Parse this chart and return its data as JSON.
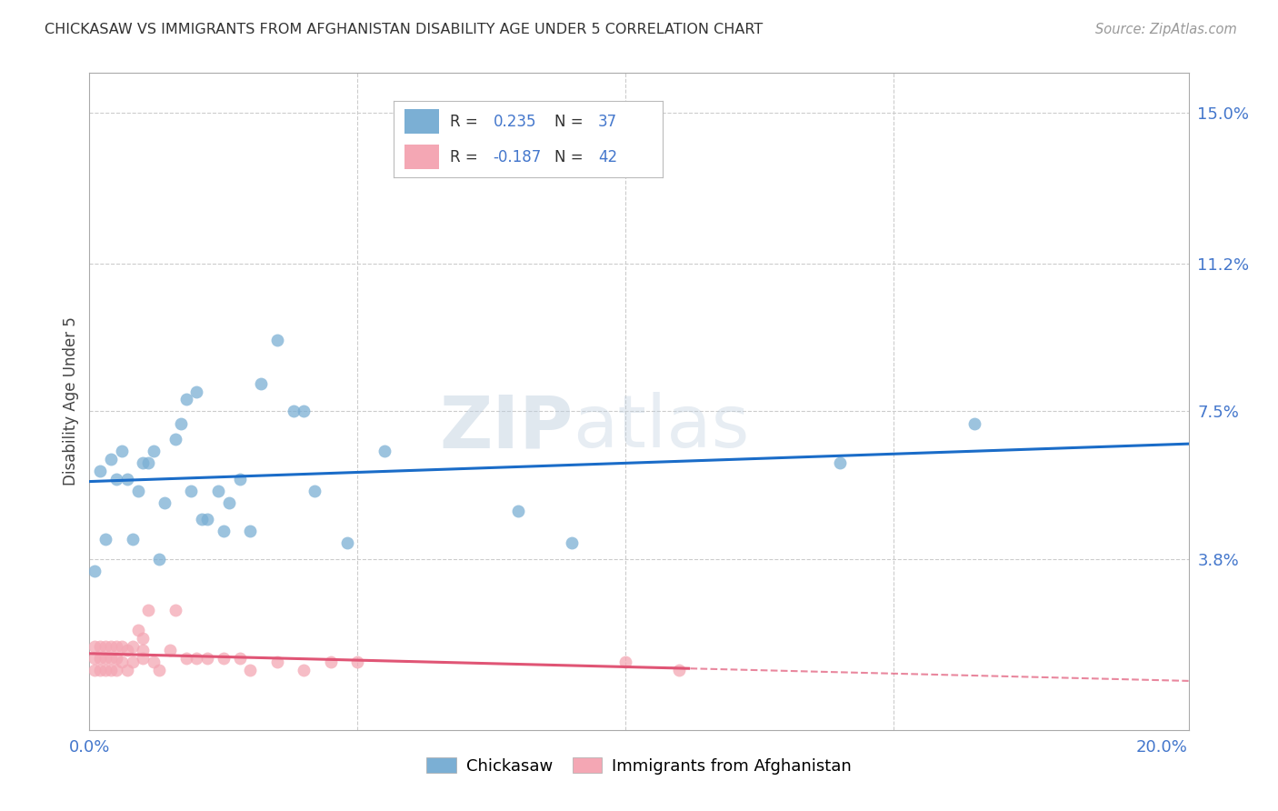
{
  "title": "CHICKASAW VS IMMIGRANTS FROM AFGHANISTAN DISABILITY AGE UNDER 5 CORRELATION CHART",
  "source": "Source: ZipAtlas.com",
  "ylabel_label": "Disability Age Under 5",
  "legend_label1": "Chickasaw",
  "legend_label2": "Immigrants from Afghanistan",
  "r1": "0.235",
  "n1": "37",
  "r2": "-0.187",
  "n2": "42",
  "xlim": [
    0.0,
    0.205
  ],
  "ylim": [
    -0.005,
    0.16
  ],
  "yticks": [
    0.038,
    0.075,
    0.112,
    0.15
  ],
  "ytick_labels": [
    "3.8%",
    "7.5%",
    "11.2%",
    "15.0%"
  ],
  "xticks": [
    0.0,
    0.05,
    0.1,
    0.15,
    0.2
  ],
  "xtick_labels": [
    "0.0%",
    "",
    "",
    "",
    "20.0%"
  ],
  "color_blue": "#7BAFD4",
  "color_pink": "#F4A7B4",
  "line_blue": "#1A6CC8",
  "line_pink": "#E05575",
  "watermark_zip": "ZIP",
  "watermark_atlas": "atlas",
  "chickasaw_x": [
    0.001,
    0.002,
    0.003,
    0.004,
    0.005,
    0.006,
    0.007,
    0.008,
    0.009,
    0.01,
    0.011,
    0.012,
    0.013,
    0.014,
    0.016,
    0.017,
    0.018,
    0.019,
    0.02,
    0.021,
    0.022,
    0.024,
    0.025,
    0.026,
    0.028,
    0.03,
    0.032,
    0.035,
    0.038,
    0.04,
    0.042,
    0.048,
    0.055,
    0.08,
    0.09,
    0.14,
    0.165
  ],
  "chickasaw_y": [
    0.035,
    0.06,
    0.043,
    0.063,
    0.058,
    0.065,
    0.058,
    0.043,
    0.055,
    0.062,
    0.062,
    0.065,
    0.038,
    0.052,
    0.068,
    0.072,
    0.078,
    0.055,
    0.08,
    0.048,
    0.048,
    0.055,
    0.045,
    0.052,
    0.058,
    0.045,
    0.082,
    0.093,
    0.075,
    0.075,
    0.055,
    0.042,
    0.065,
    0.05,
    0.042,
    0.062,
    0.072
  ],
  "afghanistan_x": [
    0.001,
    0.001,
    0.001,
    0.002,
    0.002,
    0.002,
    0.003,
    0.003,
    0.003,
    0.004,
    0.004,
    0.004,
    0.005,
    0.005,
    0.005,
    0.006,
    0.006,
    0.007,
    0.007,
    0.008,
    0.008,
    0.009,
    0.01,
    0.01,
    0.01,
    0.011,
    0.012,
    0.013,
    0.015,
    0.016,
    0.018,
    0.02,
    0.022,
    0.025,
    0.028,
    0.03,
    0.035,
    0.04,
    0.045,
    0.05,
    0.1,
    0.11
  ],
  "afghanistan_y": [
    0.01,
    0.013,
    0.016,
    0.01,
    0.013,
    0.016,
    0.01,
    0.013,
    0.016,
    0.01,
    0.013,
    0.016,
    0.01,
    0.013,
    0.016,
    0.012,
    0.016,
    0.01,
    0.015,
    0.012,
    0.016,
    0.02,
    0.013,
    0.015,
    0.018,
    0.025,
    0.012,
    0.01,
    0.015,
    0.025,
    0.013,
    0.013,
    0.013,
    0.013,
    0.013,
    0.01,
    0.012,
    0.01,
    0.012,
    0.012,
    0.012,
    0.01
  ]
}
